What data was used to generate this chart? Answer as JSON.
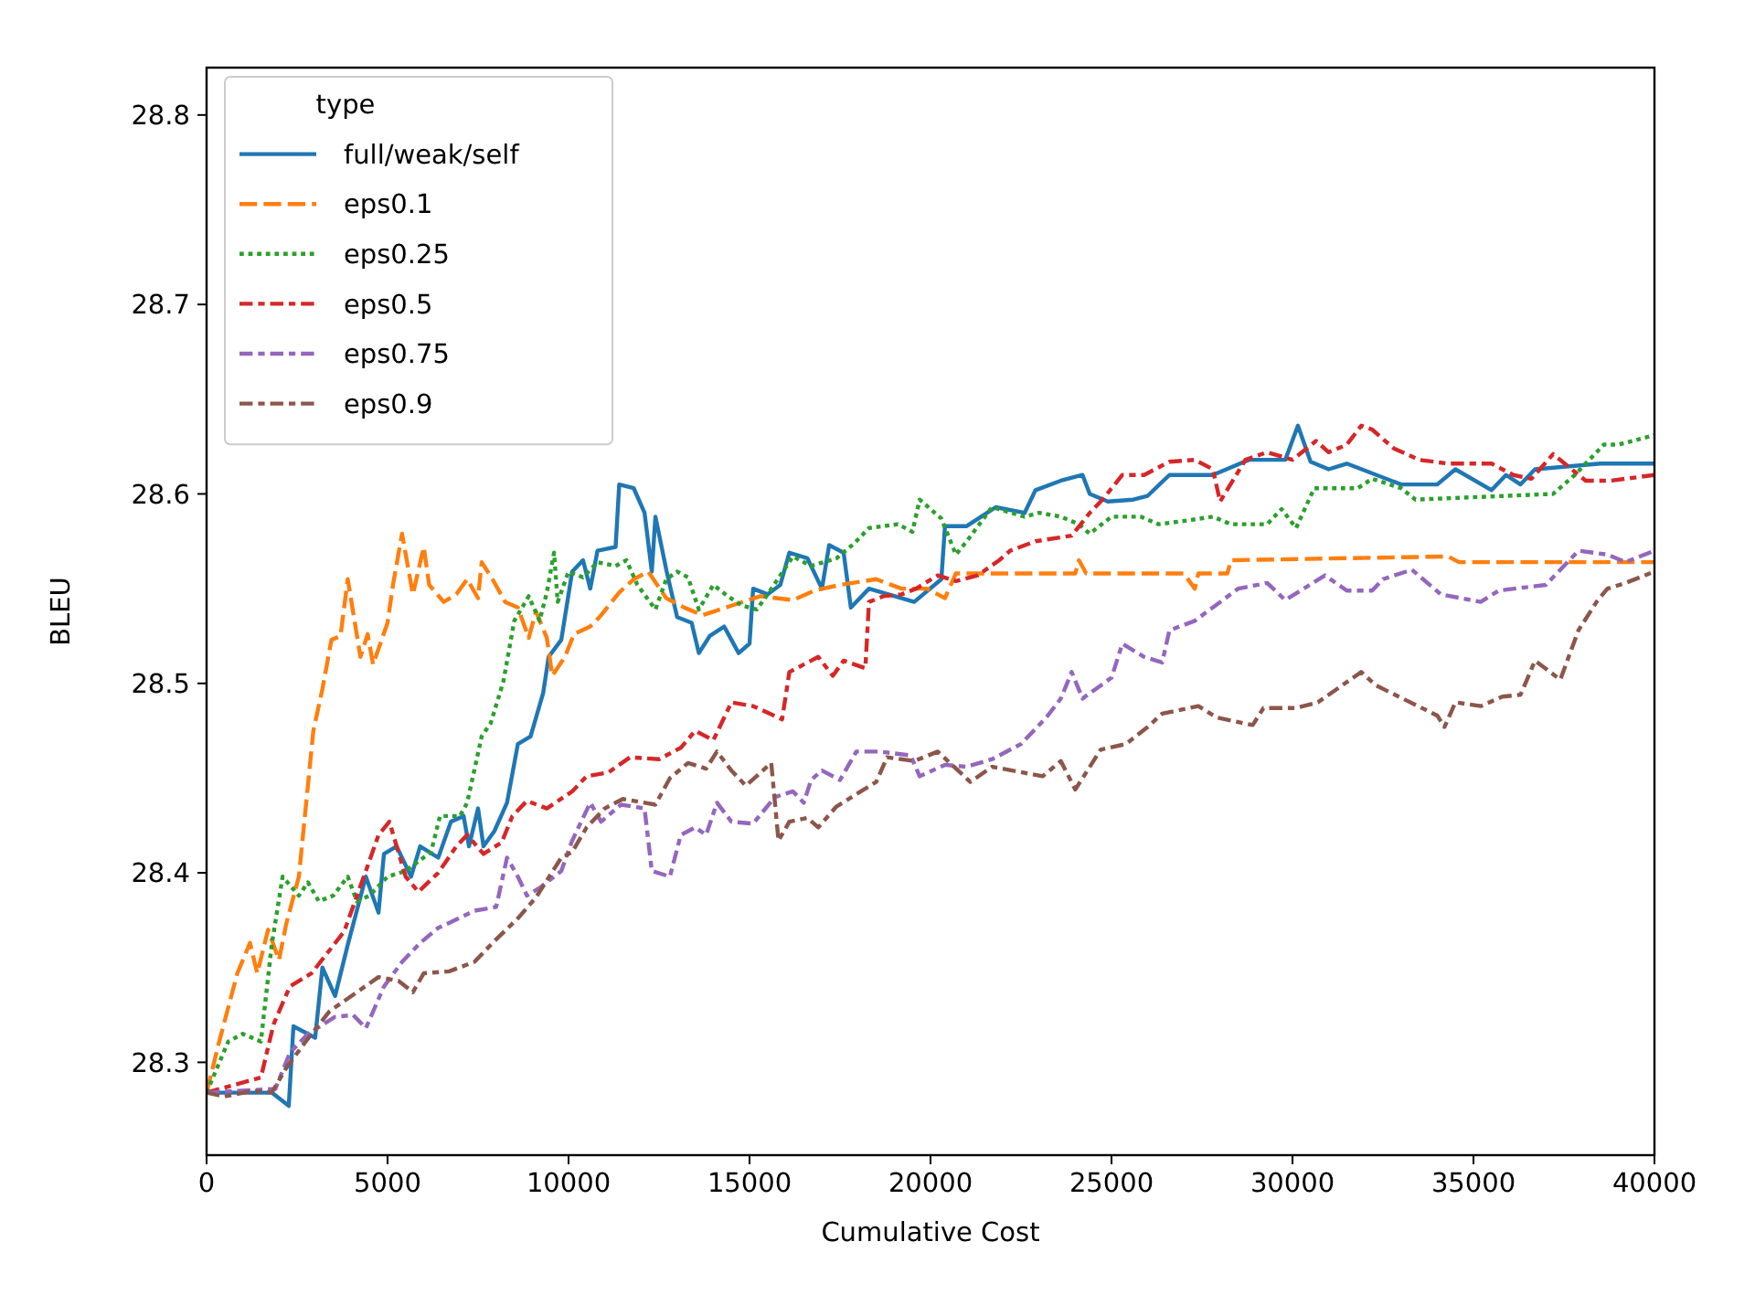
{
  "chart_data": {
    "type": "line",
    "xlabel": "Cumulative Cost",
    "ylabel": "BLEU",
    "legend_title": "type",
    "legend": "top left",
    "grid": false,
    "xlim": [
      0,
      40000
    ],
    "ylim": [
      28.251,
      28.825
    ],
    "xticks": [
      0,
      5000,
      10000,
      15000,
      20000,
      25000,
      30000,
      35000,
      40000
    ],
    "yticks": [
      28.3,
      28.4,
      28.5,
      28.6,
      28.7,
      28.8
    ],
    "series": [
      {
        "name": "full/weak/self",
        "color": "#1f77b4",
        "line_style": "solid",
        "x": [
          0,
          1000,
          1800,
          2270,
          2400,
          3000,
          3200,
          3550,
          3900,
          4400,
          4750,
          4900,
          5250,
          5650,
          5900,
          6400,
          6750,
          7100,
          7250,
          7500,
          7650,
          7950,
          8300,
          8600,
          8950,
          9300,
          9450,
          9800,
          10100,
          10400,
          10600,
          10800,
          11300,
          11400,
          11800,
          12100,
          12300,
          12400,
          12700,
          13000,
          13400,
          13600,
          13900,
          14300,
          14700,
          15000,
          15100,
          15500,
          15850,
          16100,
          16600,
          17000,
          17200,
          17600,
          17800,
          18300,
          19550,
          20300,
          20400,
          21000,
          21400,
          21800,
          22600,
          22900,
          23600,
          24200,
          24400,
          24900,
          25600,
          26000,
          26600,
          27800,
          28800,
          29800,
          30150,
          30500,
          31000,
          31500,
          33000,
          34000,
          34500,
          35500,
          35900,
          36300,
          36700,
          38500,
          40000
        ],
        "values": [
          28.284,
          28.284,
          28.284,
          28.277,
          28.319,
          28.313,
          28.35,
          28.335,
          28.362,
          28.398,
          28.379,
          28.41,
          28.414,
          28.398,
          28.414,
          28.408,
          28.427,
          28.43,
          28.414,
          28.434,
          28.414,
          28.422,
          28.437,
          28.468,
          28.472,
          28.495,
          28.514,
          28.523,
          28.559,
          28.565,
          28.55,
          28.57,
          28.572,
          28.605,
          28.603,
          28.59,
          28.559,
          28.588,
          28.56,
          28.535,
          28.532,
          28.516,
          28.525,
          28.53,
          28.516,
          28.521,
          28.55,
          28.547,
          28.552,
          28.569,
          28.566,
          28.55,
          28.573,
          28.569,
          28.54,
          28.55,
          28.543,
          28.555,
          28.583,
          28.583,
          28.588,
          28.593,
          28.59,
          28.602,
          28.607,
          28.61,
          28.6,
          28.596,
          28.597,
          28.599,
          28.61,
          28.61,
          28.618,
          28.618,
          28.636,
          28.617,
          28.613,
          28.616,
          28.605,
          28.605,
          28.613,
          28.602,
          28.61,
          28.605,
          28.613,
          28.616,
          28.616
        ]
      },
      {
        "name": "eps0.1",
        "color": "#ff7f0e",
        "line_style": "dashed",
        "x": [
          0,
          350,
          850,
          1200,
          1400,
          1700,
          2000,
          2200,
          2550,
          2950,
          3200,
          3450,
          3700,
          3900,
          4250,
          4450,
          4600,
          5000,
          5150,
          5400,
          5700,
          6000,
          6150,
          6550,
          6900,
          7200,
          7500,
          7600,
          7900,
          8250,
          8600,
          8900,
          9100,
          9400,
          9550,
          9900,
          10150,
          10600,
          10900,
          11400,
          11800,
          12200,
          12700,
          13200,
          13700,
          14500,
          15300,
          16200,
          16800,
          17500,
          18500,
          19200,
          19900,
          20400,
          20700,
          21800,
          24000,
          24100,
          24300,
          27000,
          27300,
          27400,
          28200,
          28300,
          34300,
          34600,
          40000
        ],
        "values": [
          28.284,
          28.311,
          28.347,
          28.363,
          28.347,
          28.37,
          28.354,
          28.373,
          28.398,
          28.475,
          28.497,
          28.523,
          28.525,
          28.555,
          28.514,
          28.526,
          28.51,
          28.532,
          28.552,
          28.579,
          28.547,
          28.572,
          28.552,
          28.543,
          28.547,
          28.555,
          28.545,
          28.564,
          28.555,
          28.543,
          28.54,
          28.524,
          28.538,
          28.524,
          28.504,
          28.514,
          28.526,
          28.53,
          28.536,
          28.548,
          28.555,
          28.559,
          28.545,
          28.54,
          28.536,
          28.541,
          28.546,
          28.544,
          28.549,
          28.552,
          28.555,
          28.55,
          28.55,
          28.545,
          28.558,
          28.558,
          28.558,
          28.565,
          28.558,
          28.558,
          28.55,
          28.558,
          28.558,
          28.565,
          28.567,
          28.564,
          28.564
        ]
      },
      {
        "name": "eps0.25",
        "color": "#2ca02c",
        "line_style": "dotted",
        "x": [
          0,
          600,
          1000,
          1500,
          1800,
          2100,
          2550,
          2800,
          3100,
          3500,
          3900,
          4150,
          4500,
          5000,
          5500,
          6200,
          6450,
          7000,
          7200,
          7600,
          7850,
          8200,
          8500,
          8900,
          9200,
          9400,
          9600,
          9700,
          10000,
          10400,
          10800,
          11300,
          11600,
          11900,
          12400,
          12700,
          13000,
          13300,
          13600,
          14000,
          14400,
          14800,
          15200,
          15500,
          16200,
          16700,
          17400,
          17900,
          18300,
          19100,
          19500,
          19700,
          20300,
          20700,
          21000,
          21700,
          22600,
          23000,
          23600,
          24100,
          24400,
          25000,
          25800,
          26300,
          27100,
          27800,
          28300,
          29300,
          29700,
          30100,
          30600,
          31800,
          32200,
          33000,
          33400,
          37200,
          37800,
          38600,
          39000,
          40000
        ],
        "values": [
          28.284,
          28.311,
          28.315,
          28.311,
          28.362,
          28.398,
          28.388,
          28.395,
          28.385,
          28.388,
          28.398,
          28.385,
          28.388,
          28.398,
          28.401,
          28.411,
          28.43,
          28.43,
          28.437,
          28.472,
          28.479,
          28.501,
          28.533,
          28.546,
          28.533,
          28.548,
          28.569,
          28.543,
          28.559,
          28.556,
          28.564,
          28.562,
          28.565,
          28.552,
          28.539,
          28.555,
          28.559,
          28.556,
          28.539,
          28.552,
          28.546,
          28.541,
          28.539,
          28.547,
          28.567,
          28.562,
          28.566,
          28.574,
          28.582,
          28.584,
          28.58,
          28.597,
          28.587,
          28.568,
          28.575,
          28.593,
          28.588,
          28.59,
          28.588,
          28.584,
          28.579,
          28.588,
          28.588,
          28.584,
          28.586,
          28.588,
          28.584,
          28.584,
          28.592,
          28.582,
          28.603,
          28.603,
          28.608,
          28.603,
          28.597,
          28.6,
          28.61,
          28.626,
          28.626,
          28.631
        ]
      },
      {
        "name": "eps0.5",
        "color": "#d62728",
        "line_style": "dashdot",
        "x": [
          0,
          1500,
          1850,
          2300,
          2900,
          3800,
          4400,
          4750,
          5050,
          5500,
          5850,
          6400,
          6900,
          7200,
          7650,
          8150,
          8450,
          8850,
          9400,
          10100,
          10500,
          11100,
          11700,
          12500,
          13100,
          13500,
          14000,
          14500,
          15100,
          15900,
          16100,
          16900,
          17300,
          17600,
          18200,
          18300,
          18700,
          19200,
          19600,
          20200,
          20700,
          21300,
          21900,
          22200,
          22900,
          23900,
          24400,
          24750,
          25300,
          25900,
          26600,
          27300,
          27800,
          28000,
          28700,
          29300,
          30000,
          30650,
          31000,
          31500,
          31900,
          32200,
          32800,
          33500,
          34300,
          35500,
          36100,
          36600,
          37200,
          38100,
          38800,
          40000
        ],
        "values": [
          28.284,
          28.292,
          28.32,
          28.34,
          28.347,
          28.369,
          28.401,
          28.42,
          28.427,
          28.398,
          28.39,
          28.4,
          28.414,
          28.42,
          28.41,
          28.416,
          28.43,
          28.438,
          28.434,
          28.443,
          28.451,
          28.453,
          28.461,
          28.46,
          28.466,
          28.475,
          28.47,
          28.49,
          28.488,
          28.481,
          28.506,
          28.514,
          28.504,
          28.512,
          28.508,
          28.543,
          28.546,
          28.547,
          28.55,
          28.557,
          28.554,
          28.557,
          28.565,
          28.57,
          28.575,
          28.578,
          28.59,
          28.597,
          28.61,
          28.61,
          28.617,
          28.618,
          28.613,
          28.596,
          28.618,
          28.622,
          28.618,
          28.628,
          28.622,
          28.626,
          28.636,
          28.634,
          28.624,
          28.618,
          28.616,
          28.616,
          28.61,
          28.608,
          28.621,
          28.607,
          28.607,
          28.61
        ]
      },
      {
        "name": "eps0.75",
        "color": "#9467bd",
        "line_style": "dashdot",
        "x": [
          0,
          1900,
          2300,
          2800,
          3550,
          4050,
          4400,
          4900,
          5400,
          5900,
          6400,
          6750,
          7400,
          8000,
          8300,
          8600,
          8850,
          9200,
          9800,
          10100,
          10600,
          10900,
          11450,
          12100,
          12300,
          12800,
          13100,
          13500,
          13800,
          14100,
          14500,
          15100,
          15700,
          16200,
          16500,
          16700,
          17000,
          17500,
          17950,
          18600,
          19450,
          19700,
          20400,
          21000,
          21700,
          22500,
          23200,
          23600,
          23900,
          24200,
          25000,
          25300,
          25900,
          26400,
          26600,
          27300,
          28500,
          29300,
          29800,
          30900,
          31500,
          32200,
          32500,
          33300,
          34100,
          35200,
          35700,
          37000,
          37900,
          38700,
          39200,
          40000
        ],
        "values": [
          28.284,
          28.286,
          28.305,
          28.315,
          28.324,
          28.325,
          28.318,
          28.34,
          28.353,
          28.363,
          28.371,
          28.374,
          28.38,
          28.382,
          28.408,
          28.398,
          28.388,
          28.392,
          28.401,
          28.417,
          28.437,
          28.427,
          28.436,
          28.434,
          28.401,
          28.398,
          28.42,
          28.424,
          28.42,
          28.437,
          28.427,
          28.426,
          28.44,
          28.443,
          28.437,
          28.449,
          28.454,
          28.449,
          28.464,
          28.464,
          28.462,
          28.451,
          28.457,
          28.456,
          28.46,
          28.468,
          28.482,
          28.492,
          28.506,
          28.492,
          28.503,
          28.521,
          28.514,
          28.511,
          28.528,
          28.533,
          28.55,
          28.553,
          28.544,
          28.557,
          28.549,
          28.549,
          28.555,
          28.56,
          28.547,
          28.543,
          28.549,
          28.552,
          28.57,
          28.568,
          28.564,
          28.57
        ]
      },
      {
        "name": "eps0.9",
        "color": "#8c564b",
        "line_style": "dashdot",
        "x": [
          0,
          500,
          1300,
          1800,
          2200,
          2700,
          3400,
          4150,
          4750,
          5300,
          5700,
          6000,
          6700,
          7400,
          7900,
          8600,
          9100,
          9800,
          10100,
          10500,
          11000,
          11500,
          12400,
          12800,
          13300,
          13800,
          14100,
          14500,
          14900,
          15600,
          15800,
          16100,
          16600,
          16900,
          17400,
          18500,
          18800,
          19550,
          20200,
          21100,
          21700,
          23100,
          23600,
          24000,
          24700,
          25400,
          26000,
          26400,
          27400,
          27900,
          28900,
          29200,
          30100,
          30700,
          31900,
          32300,
          34000,
          34200,
          34500,
          35200,
          35800,
          36300,
          36700,
          37400,
          37900,
          38400,
          38700,
          39200,
          40000
        ],
        "values": [
          28.284,
          28.282,
          28.285,
          28.284,
          28.297,
          28.31,
          28.327,
          28.337,
          28.345,
          28.343,
          28.337,
          28.347,
          28.348,
          28.353,
          28.363,
          28.376,
          28.387,
          28.408,
          28.411,
          28.424,
          28.434,
          28.439,
          28.436,
          28.45,
          28.458,
          28.455,
          28.464,
          28.454,
          28.446,
          28.458,
          28.417,
          28.427,
          28.429,
          28.424,
          28.435,
          28.448,
          28.461,
          28.459,
          28.464,
          28.448,
          28.456,
          28.451,
          28.459,
          28.444,
          28.465,
          28.468,
          28.477,
          28.484,
          28.488,
          28.482,
          28.478,
          28.487,
          28.487,
          28.49,
          28.506,
          28.499,
          28.483,
          28.477,
          28.49,
          28.488,
          28.493,
          28.494,
          28.512,
          28.502,
          28.528,
          28.543,
          28.55,
          28.553,
          28.559
        ]
      }
    ]
  }
}
